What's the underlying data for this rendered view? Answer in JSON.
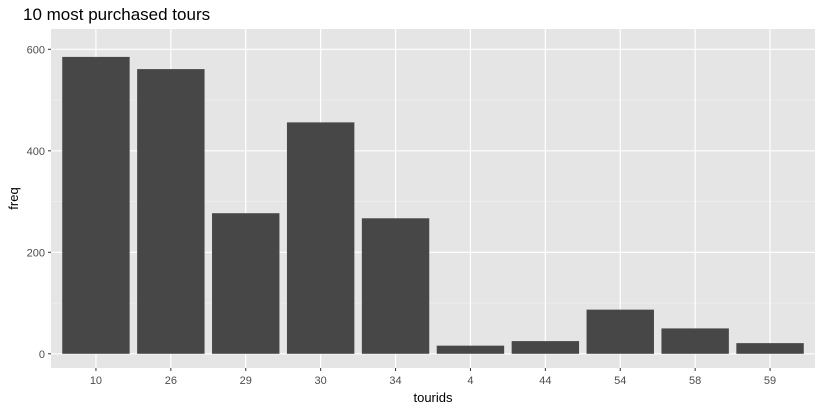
{
  "chart_data": {
    "type": "bar",
    "title": "10 most purchased tours",
    "xlabel": "tourids",
    "ylabel": "freq",
    "categories": [
      "10",
      "26",
      "29",
      "30",
      "34",
      "4",
      "44",
      "54",
      "58",
      "59"
    ],
    "values": [
      585,
      561,
      277,
      456,
      267,
      16,
      25,
      87,
      50,
      21
    ],
    "ylim": [
      -28,
      640
    ],
    "yticks": [
      0,
      200,
      400,
      600
    ],
    "grid": true,
    "legend": "none",
    "colors": {
      "bar": "#474747",
      "panel": "#e5e5e5",
      "grid_major": "#ffffff",
      "grid_minor": "#f2f2f2",
      "tick_text": "#4d4d4d",
      "tick_mark": "#333333"
    }
  }
}
